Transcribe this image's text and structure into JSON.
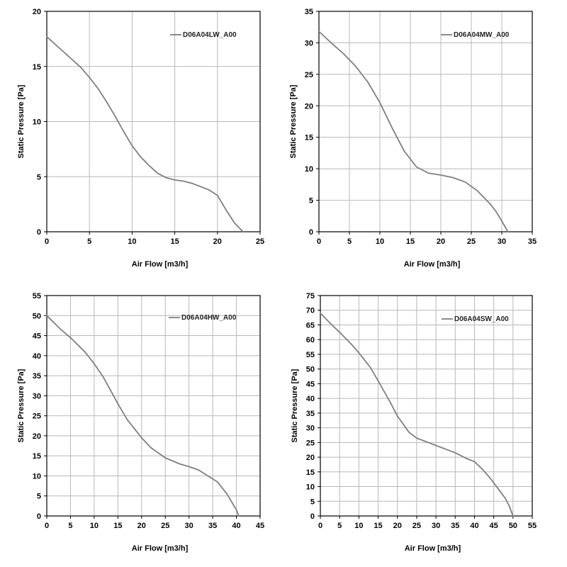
{
  "colors": {
    "curve": "#7f7f7f",
    "grid": "#b8b8b8",
    "axis": "#000000",
    "background": "#ffffff"
  },
  "chart_data": [
    {
      "type": "line",
      "title": "",
      "xlabel": "Air Flow [m3/h]",
      "ylabel": "Static Pressure [Pa]",
      "xlim": [
        0,
        25
      ],
      "ylim": [
        0,
        20
      ],
      "xticks": [
        0,
        5,
        10,
        15,
        20,
        25
      ],
      "yticks": [
        0,
        5,
        10,
        15,
        20
      ],
      "grid": true,
      "legend_position": "top-right",
      "series": [
        {
          "name": "D06A04LW_A00",
          "x": [
            0,
            2,
            4,
            5,
            6,
            7,
            8,
            9,
            10,
            11,
            12,
            13,
            14,
            15,
            16,
            17,
            18,
            19,
            20,
            21,
            22,
            23
          ],
          "y": [
            17.7,
            16.3,
            14.9,
            14.0,
            13.0,
            11.8,
            10.5,
            9.1,
            7.8,
            6.8,
            6.0,
            5.3,
            4.9,
            4.7,
            4.6,
            4.4,
            4.1,
            3.8,
            3.3,
            2.0,
            0.8,
            0.0
          ]
        }
      ]
    },
    {
      "type": "line",
      "title": "",
      "xlabel": "Air Flow [m3/h]",
      "ylabel": "Static Pressure [Pa]",
      "xlim": [
        0,
        35
      ],
      "ylim": [
        0,
        35
      ],
      "xticks": [
        0,
        5,
        10,
        15,
        20,
        25,
        30,
        35
      ],
      "yticks": [
        0,
        5,
        10,
        15,
        20,
        25,
        30,
        35
      ],
      "grid": true,
      "legend_position": "top-right",
      "series": [
        {
          "name": "D06A04MW_A00",
          "x": [
            0,
            2,
            4,
            6,
            8,
            10,
            12,
            14,
            16,
            18,
            20,
            22,
            24,
            26,
            28,
            29,
            30,
            31
          ],
          "y": [
            31.8,
            30.0,
            28.3,
            26.3,
            23.8,
            20.5,
            16.5,
            12.8,
            10.3,
            9.3,
            9.0,
            8.6,
            7.9,
            6.5,
            4.5,
            3.3,
            1.7,
            0.0
          ]
        }
      ]
    },
    {
      "type": "line",
      "title": "",
      "xlabel": "Air Flow [m3/h]",
      "ylabel": "Static Pressure [Pa]",
      "xlim": [
        0,
        45
      ],
      "ylim": [
        0,
        55
      ],
      "xticks": [
        0,
        5,
        10,
        15,
        20,
        25,
        30,
        35,
        40,
        45
      ],
      "yticks": [
        0,
        5,
        10,
        15,
        20,
        25,
        30,
        35,
        40,
        45,
        50,
        55
      ],
      "grid": true,
      "legend_position": "top-right",
      "series": [
        {
          "name": "D06A04HW_A00",
          "x": [
            0,
            3,
            5,
            8,
            10,
            12,
            15,
            17,
            20,
            22,
            25,
            28,
            30,
            32,
            34,
            36,
            38,
            39,
            40,
            40.5
          ],
          "y": [
            50.0,
            46.5,
            44.5,
            41.0,
            38.0,
            34.5,
            28.0,
            24.0,
            19.5,
            17.0,
            14.5,
            13.0,
            12.3,
            11.5,
            10.0,
            8.5,
            5.5,
            3.5,
            1.5,
            0.0
          ]
        }
      ]
    },
    {
      "type": "line",
      "title": "",
      "xlabel": "Air Flow [m3/h]",
      "ylabel": "Static Pressure [Pa]",
      "xlim": [
        0,
        55
      ],
      "ylim": [
        0,
        75
      ],
      "xticks": [
        0,
        5,
        10,
        15,
        20,
        25,
        30,
        35,
        40,
        45,
        50,
        55
      ],
      "yticks": [
        0,
        5,
        10,
        15,
        20,
        25,
        30,
        35,
        40,
        45,
        50,
        55,
        60,
        65,
        70,
        75
      ],
      "grid": true,
      "legend_position": "top-right",
      "series": [
        {
          "name": "D06A04SW_A00",
          "x": [
            0,
            3,
            5,
            8,
            10,
            13,
            15,
            18,
            20,
            23,
            25,
            28,
            30,
            33,
            35,
            38,
            40,
            42,
            44,
            46,
            48,
            49,
            50
          ],
          "y": [
            69.0,
            65.0,
            62.5,
            58.5,
            55.5,
            50.5,
            46.0,
            39.0,
            34.0,
            28.5,
            26.5,
            25.0,
            24.0,
            22.5,
            21.5,
            19.5,
            18.5,
            16.0,
            13.0,
            9.5,
            6.0,
            3.5,
            0.0
          ]
        }
      ]
    }
  ]
}
